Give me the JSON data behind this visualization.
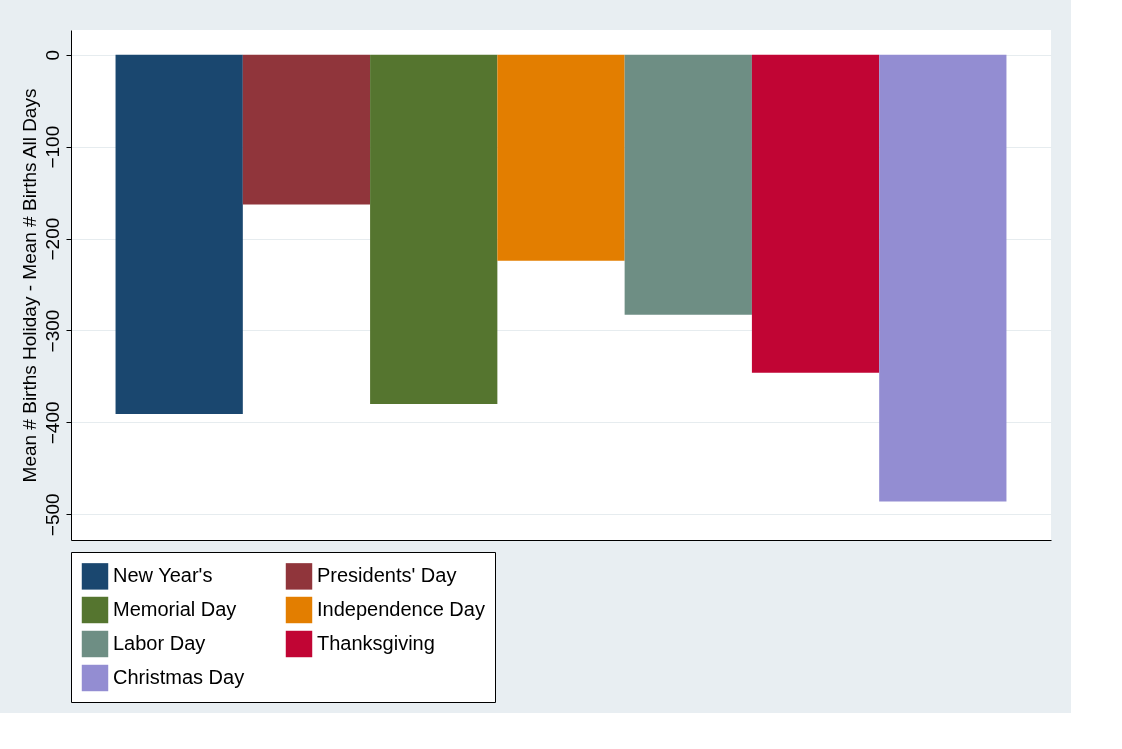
{
  "chart_data": {
    "type": "bar",
    "ylabel": "Mean # Births Holiday - Mean # Births All Days",
    "categories": [
      null,
      null,
      null,
      null,
      null,
      null,
      null
    ],
    "series": [
      {
        "name": "New Year's",
        "color": "#1a476f",
        "values": [
          -391,
          null,
          null,
          null,
          null,
          null,
          null
        ]
      },
      {
        "name": "Presidents' Day",
        "color": "#90353b",
        "values": [
          null,
          -163,
          null,
          null,
          null,
          null,
          null
        ]
      },
      {
        "name": "Memorial Day",
        "color": "#55752f",
        "values": [
          null,
          null,
          -380,
          null,
          null,
          null,
          null
        ]
      },
      {
        "name": "Independence Day",
        "color": "#e37e00",
        "values": [
          null,
          null,
          null,
          -224,
          null,
          null,
          null
        ]
      },
      {
        "name": "Labor Day",
        "color": "#6e8e84",
        "values": [
          null,
          null,
          null,
          null,
          -283,
          null,
          null
        ]
      },
      {
        "name": "Thanksgiving",
        "color": "#c10534",
        "values": [
          null,
          null,
          null,
          null,
          null,
          -346,
          null
        ]
      },
      {
        "name": "Christmas Day",
        "color": "#938dd2",
        "values": [
          null,
          null,
          null,
          null,
          null,
          null,
          -486
        ]
      }
    ],
    "ylim": [
      -528,
      27
    ],
    "yticks": [
      0,
      -100,
      -200,
      -300,
      -400,
      -500
    ],
    "grid": "y",
    "legend": "bottom",
    "tick_labels": "y"
  }
}
